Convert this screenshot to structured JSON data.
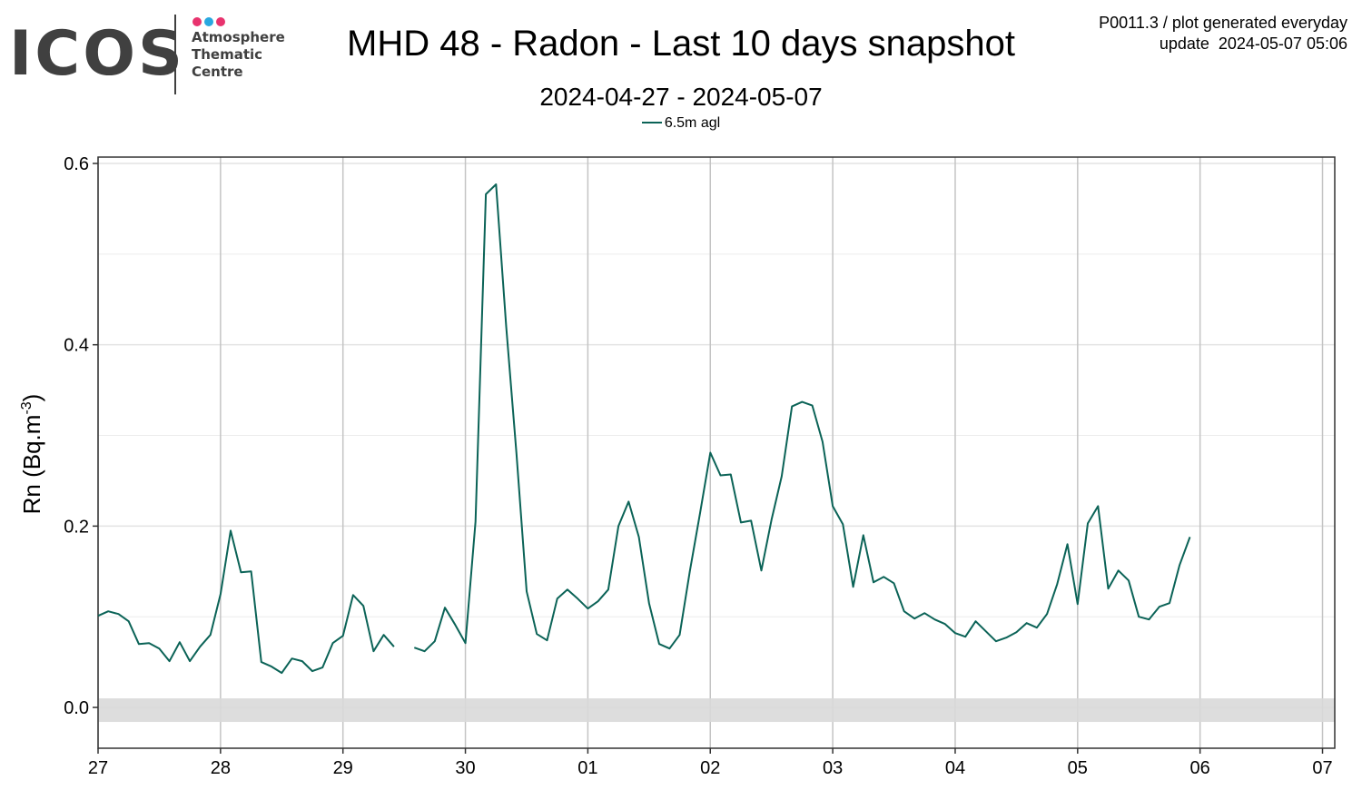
{
  "header": {
    "logo_text": "ICOS",
    "logo_sub": [
      "Atmosphere",
      "Thematic",
      "Centre"
    ],
    "logo_dot_colors": [
      "#e8336e",
      "#29a8e0",
      "#e8336e"
    ],
    "title": "MHD 48 - Radon - Last 10 days snapshot",
    "subtitle": "2024-04-27 - 2024-05-07",
    "info_line1": "P0011.3 / plot generated everyday",
    "info_line2": "update  2024-05-07 05:06"
  },
  "legend": {
    "label": "6.5m agl",
    "color": "#0b6357"
  },
  "chart_data": {
    "type": "line",
    "title": "MHD 48 - Radon - Last 10 days snapshot",
    "subtitle": "2024-04-27 - 2024-05-07",
    "ylabel_main": "Rn (Bq.m",
    "ylabel_sup": "-3",
    "ylabel_close": ")",
    "xlim": [
      0,
      10.1
    ],
    "ylim": [
      -0.045,
      0.607
    ],
    "x_tick_values": [
      0,
      1,
      2,
      3,
      4,
      5,
      6,
      7,
      8,
      9,
      10
    ],
    "x_tick_labels": [
      "27",
      "28",
      "29",
      "30",
      "01",
      "02",
      "03",
      "04",
      "05",
      "06",
      "07"
    ],
    "y_tick_values": [
      0.0,
      0.2,
      0.4,
      0.6
    ],
    "y_tick_labels": [
      "0.0",
      "0.2",
      "0.4",
      "0.6"
    ],
    "grid": true,
    "band": {
      "low": -0.016,
      "high": 0.01,
      "color": "#d9d9d9"
    },
    "series": [
      {
        "name": "6.5m agl",
        "color": "#0b6357",
        "segments": [
          [
            [
              0.0,
              0.101
            ],
            [
              0.083,
              0.106
            ],
            [
              0.167,
              0.103
            ],
            [
              0.25,
              0.095
            ],
            [
              0.333,
              0.07
            ],
            [
              0.417,
              0.071
            ],
            [
              0.5,
              0.065
            ],
            [
              0.583,
              0.051
            ],
            [
              0.667,
              0.072
            ],
            [
              0.75,
              0.051
            ],
            [
              0.833,
              0.067
            ],
            [
              0.917,
              0.08
            ],
            [
              1.0,
              0.125
            ],
            [
              1.083,
              0.195
            ],
            [
              1.167,
              0.149
            ],
            [
              1.25,
              0.15
            ],
            [
              1.333,
              0.05
            ],
            [
              1.417,
              0.045
            ],
            [
              1.5,
              0.038
            ],
            [
              1.583,
              0.054
            ],
            [
              1.667,
              0.051
            ],
            [
              1.75,
              0.04
            ],
            [
              1.833,
              0.044
            ],
            [
              1.917,
              0.071
            ],
            [
              2.0,
              0.079
            ],
            [
              2.083,
              0.124
            ],
            [
              2.167,
              0.112
            ],
            [
              2.25,
              0.062
            ],
            [
              2.333,
              0.08
            ],
            [
              2.417,
              0.067
            ]
          ],
          [
            [
              2.583,
              0.066
            ],
            [
              2.667,
              0.062
            ],
            [
              2.75,
              0.073
            ],
            [
              2.833,
              0.11
            ],
            [
              2.917,
              0.091
            ],
            [
              3.0,
              0.071
            ],
            [
              3.083,
              0.205
            ],
            [
              3.167,
              0.566
            ],
            [
              3.25,
              0.577
            ],
            [
              3.333,
              0.42
            ],
            [
              3.417,
              0.28
            ],
            [
              3.5,
              0.128
            ],
            [
              3.583,
              0.081
            ],
            [
              3.667,
              0.074
            ],
            [
              3.75,
              0.12
            ],
            [
              3.833,
              0.13
            ],
            [
              3.917,
              0.12
            ],
            [
              4.0,
              0.109
            ],
            [
              4.083,
              0.117
            ],
            [
              4.167,
              0.13
            ],
            [
              4.25,
              0.2
            ],
            [
              4.333,
              0.227
            ],
            [
              4.417,
              0.188
            ],
            [
              4.5,
              0.115
            ],
            [
              4.583,
              0.07
            ],
            [
              4.667,
              0.065
            ],
            [
              4.75,
              0.08
            ],
            [
              4.833,
              0.15
            ],
            [
              4.917,
              0.215
            ],
            [
              5.0,
              0.281
            ],
            [
              5.083,
              0.256
            ],
            [
              5.167,
              0.257
            ],
            [
              5.25,
              0.204
            ],
            [
              5.333,
              0.206
            ],
            [
              5.417,
              0.151
            ],
            [
              5.5,
              0.207
            ],
            [
              5.583,
              0.255
            ],
            [
              5.667,
              0.332
            ],
            [
              5.75,
              0.337
            ],
            [
              5.833,
              0.333
            ],
            [
              5.917,
              0.293
            ],
            [
              6.0,
              0.222
            ],
            [
              6.083,
              0.202
            ],
            [
              6.167,
              0.133
            ],
            [
              6.25,
              0.19
            ],
            [
              6.333,
              0.138
            ],
            [
              6.417,
              0.144
            ],
            [
              6.5,
              0.137
            ],
            [
              6.583,
              0.106
            ],
            [
              6.667,
              0.098
            ],
            [
              6.75,
              0.104
            ],
            [
              6.833,
              0.097
            ],
            [
              6.917,
              0.092
            ],
            [
              7.0,
              0.082
            ],
            [
              7.083,
              0.078
            ],
            [
              7.167,
              0.095
            ],
            [
              7.25,
              0.084
            ],
            [
              7.333,
              0.073
            ],
            [
              7.417,
              0.077
            ],
            [
              7.5,
              0.083
            ],
            [
              7.583,
              0.093
            ],
            [
              7.667,
              0.088
            ],
            [
              7.75,
              0.103
            ],
            [
              7.833,
              0.136
            ],
            [
              7.917,
              0.18
            ],
            [
              8.0,
              0.114
            ],
            [
              8.083,
              0.203
            ],
            [
              8.167,
              0.222
            ],
            [
              8.25,
              0.131
            ],
            [
              8.333,
              0.151
            ],
            [
              8.417,
              0.14
            ],
            [
              8.5,
              0.1
            ],
            [
              8.583,
              0.097
            ],
            [
              8.667,
              0.111
            ],
            [
              8.75,
              0.115
            ],
            [
              8.833,
              0.157
            ],
            [
              8.917,
              0.188
            ]
          ]
        ]
      }
    ]
  }
}
